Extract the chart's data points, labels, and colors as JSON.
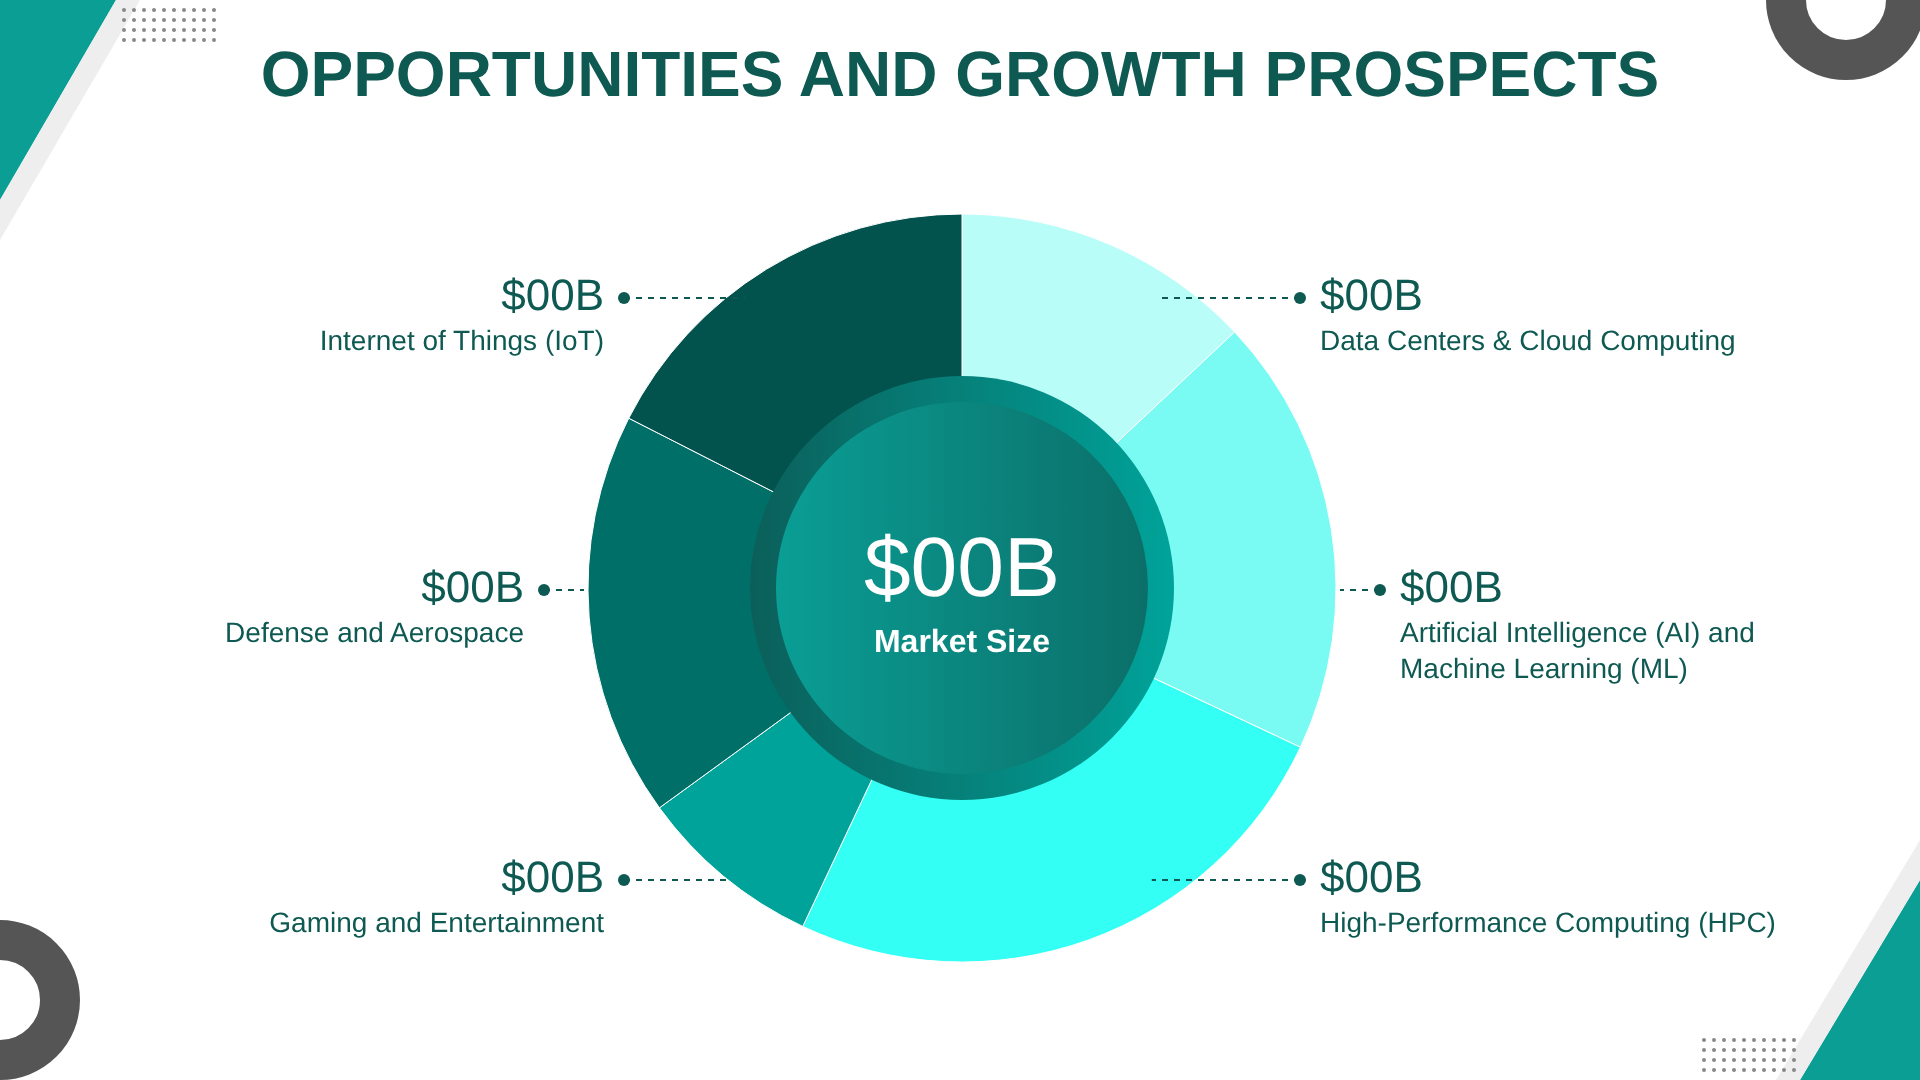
{
  "chart_data": {
    "type": "donut",
    "title": "OPPORTUNITIES AND GROWTH PROSPECTS",
    "categories": [
      "Data Centers & Cloud Computing",
      "Artificial Intelligence (AI) and Machine Learning (ML)",
      "High-Performance Computing (HPC)",
      "Gaming and Entertainment",
      "Defense and Aerospace",
      "Internet of Things (IoT)"
    ],
    "values": [
      13,
      19,
      25,
      8,
      17.5,
      17.5
    ],
    "colors": [
      "#b8fdf8",
      "#79fbf4",
      "#33fff5",
      "#00a39a",
      "#006f68",
      "#02524d"
    ],
    "value_labels": [
      "$00B",
      "$00B",
      "$00B",
      "$00B",
      "$00B",
      "$00B"
    ],
    "annotations": [
      "$00B",
      "Market Size"
    ]
  }
}
